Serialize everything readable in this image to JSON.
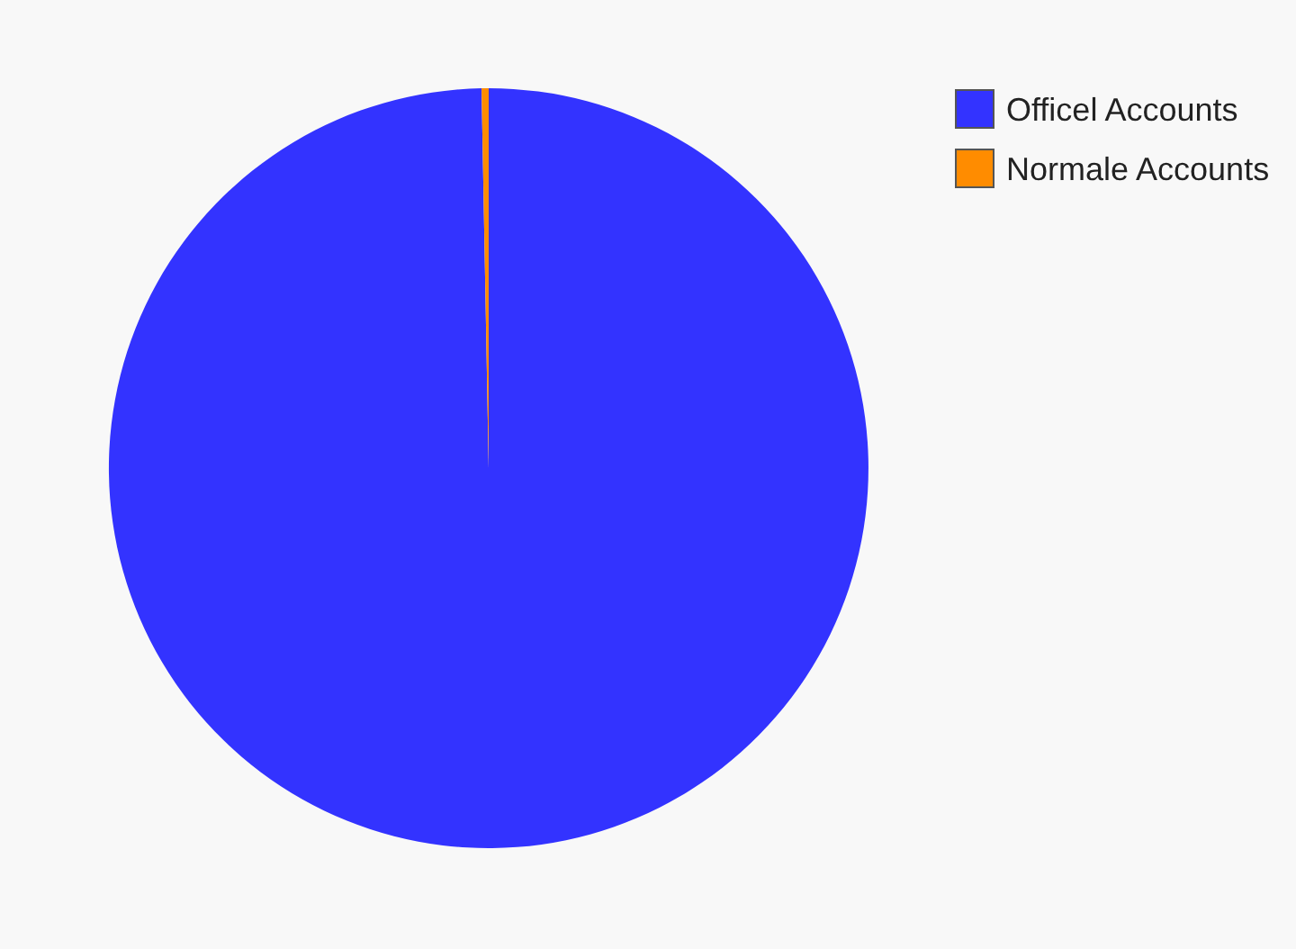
{
  "chart_data": {
    "type": "pie",
    "categories": [
      "Officel Accounts",
      "Normale Accounts"
    ],
    "values": [
      99.7,
      0.3
    ],
    "colors": [
      "#3333ff",
      "#ff8c00"
    ],
    "legend": "top right"
  }
}
